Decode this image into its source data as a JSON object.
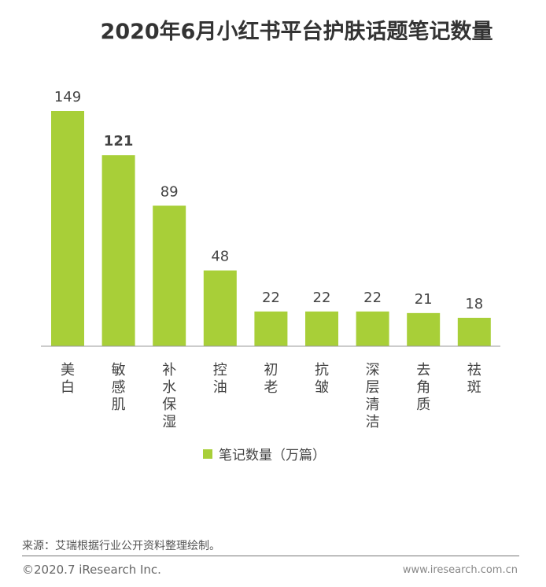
{
  "chart_data": {
    "type": "bar",
    "title": "2020年6月小红书平台护肤话题笔记数量",
    "categories": [
      "美白",
      "敏感肌",
      "补水保湿",
      "控油",
      "初老",
      "抗皱",
      "深层清洁",
      "去角质",
      "祛斑"
    ],
    "series": [
      {
        "name": "笔记数量（万篇）",
        "values": [
          149,
          121,
          89,
          48,
          22,
          22,
          22,
          21,
          18
        ]
      }
    ],
    "ylim": [
      0,
      150
    ],
    "grid": false,
    "legend": "bottom",
    "bar_color": "#a8cf38"
  },
  "footer": {
    "source": "来源：艾瑞根据行业公开资料整理绘制。",
    "copyright": "©2020.7 iResearch Inc.",
    "url": "www.iresearch.com.cn"
  }
}
